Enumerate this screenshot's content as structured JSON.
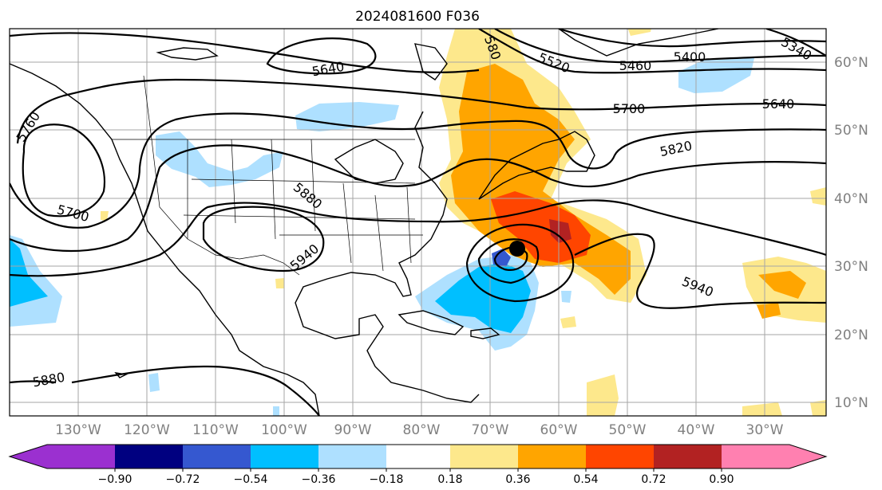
{
  "title": "2024081600 F036",
  "map": {
    "projection": "PlateCarree",
    "lon_range_deg": [
      -139,
      -20
    ],
    "lat_range_deg": [
      8,
      65
    ],
    "lat_labels": [
      "60°N",
      "50°N",
      "40°N",
      "30°N",
      "20°N",
      "10°N"
    ],
    "lon_labels": [
      "130°W",
      "120°W",
      "110°W",
      "100°W",
      "90°W",
      "80°W",
      "70°W",
      "60°W",
      "50°W",
      "40°W",
      "30°W"
    ],
    "grid_color": "#a6a6a6",
    "label_color": "#808080",
    "contour_color": "#000000",
    "contour_labels": [
      "5640",
      "5520",
      "5460",
      "5400",
      "5340",
      "5700",
      "5640",
      "5820",
      "5760",
      "5700",
      "5880",
      "5940",
      "5940",
      "5880",
      "580"
    ],
    "storm_marker": "filled-black-circle"
  },
  "colorbar": {
    "tick_labels": [
      "−0.90",
      "−0.72",
      "−0.54",
      "−0.36",
      "−0.18",
      "0.18",
      "0.36",
      "0.54",
      "0.72",
      "0.90"
    ],
    "colors": [
      "#9b30d0",
      "#000080",
      "#3558d0",
      "#00bfff",
      "#aee0ff",
      "#ffffff",
      "#fde88c",
      "#ffa500",
      "#ff4500",
      "#b22222",
      "#ff80b0"
    ],
    "extend": "both"
  }
}
